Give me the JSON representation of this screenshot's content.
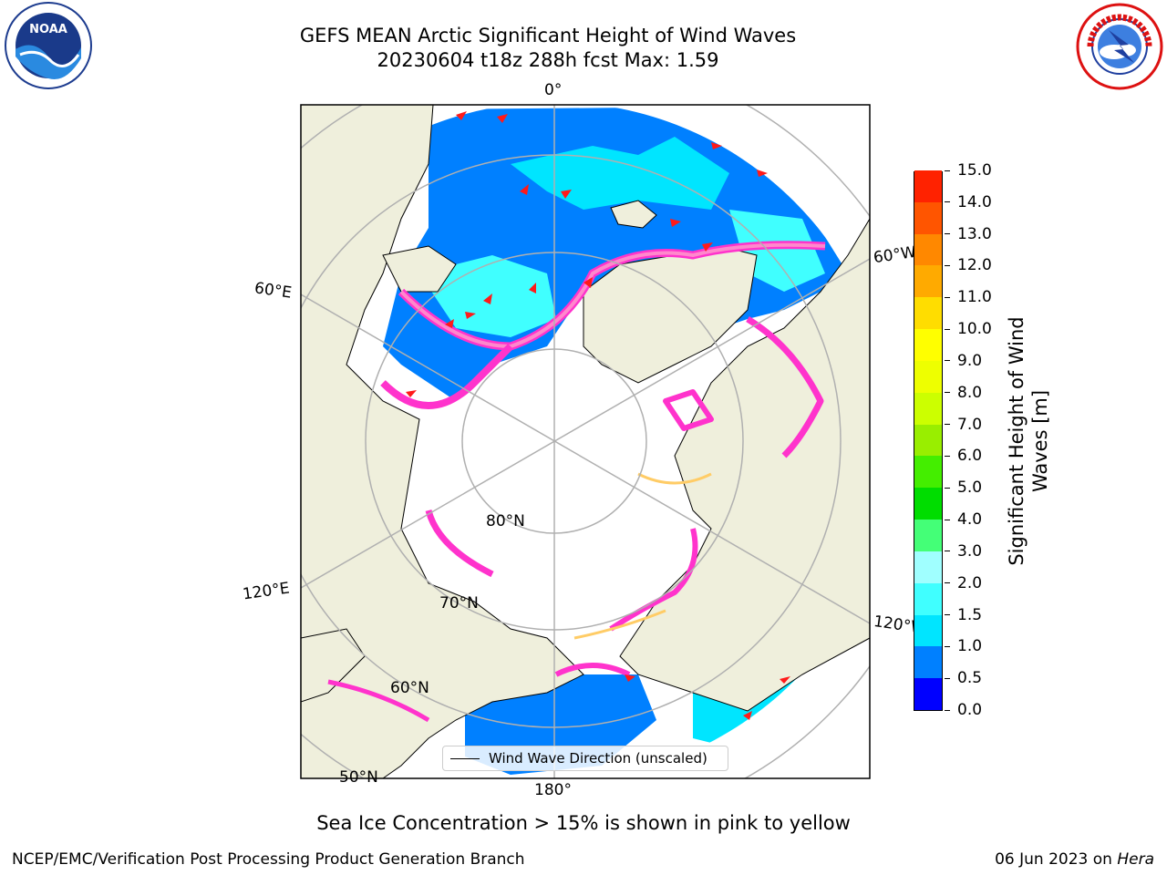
{
  "title_line1": "GEFS MEAN Arctic Significant Height of Wind Waves",
  "title_line2": "20230604 t18z 288h fcst   Max: 1.59",
  "logos": {
    "left": {
      "icon": "noaa-logo",
      "text": "NOAA"
    },
    "right": {
      "icon": "nws-logo"
    }
  },
  "map": {
    "projection": "north-polar-stereographic",
    "lon_labels": {
      "top": "0°",
      "right_upper": "60°W",
      "right_lower": "120°W",
      "bottom": "180°",
      "left_upper": "60°E",
      "left_lower": "120°E"
    },
    "lat_labels": {
      "lat80": "80°N",
      "lat70": "70°N",
      "lat60": "60°N",
      "lat50": "50°N"
    },
    "colors": {
      "land": "#efefdc",
      "ice": "#ffffff",
      "grid": "#b0b0b0",
      "coast": "#000000",
      "arrow": "#ff1a1a"
    },
    "ice_edge_colors": [
      "#ff33cc",
      "#ff88cc",
      "#ffcc66"
    ]
  },
  "colorbar": {
    "label_line1": "Significant Height of Wind",
    "label_line2": "Waves [m]",
    "ticks": [
      "0.0",
      "0.5",
      "1.0",
      "1.5",
      "2.0",
      "3.0",
      "4.0",
      "5.0",
      "6.0",
      "7.0",
      "8.0",
      "9.0",
      "10.0",
      "11.0",
      "12.0",
      "13.0",
      "14.0",
      "15.0"
    ],
    "colors": [
      "#0000ff",
      "#0080ff",
      "#00e5ff",
      "#40ffff",
      "#a0ffff",
      "#44ff77",
      "#00dd00",
      "#44ee00",
      "#99ee00",
      "#ccff00",
      "#eeff00",
      "#ffff00",
      "#ffdd00",
      "#ffaa00",
      "#ff8800",
      "#ff5500",
      "#ff2200"
    ]
  },
  "legend": {
    "label": "Wind Wave Direction (unscaled)"
  },
  "subtitle": "Sea Ice Concentration > 15% is shown in pink to yellow",
  "footer": {
    "left": "NCEP/EMC/Verification Post Processing Product Generation Branch",
    "date": "06 Jun 2023 on ",
    "host": "Hera"
  }
}
